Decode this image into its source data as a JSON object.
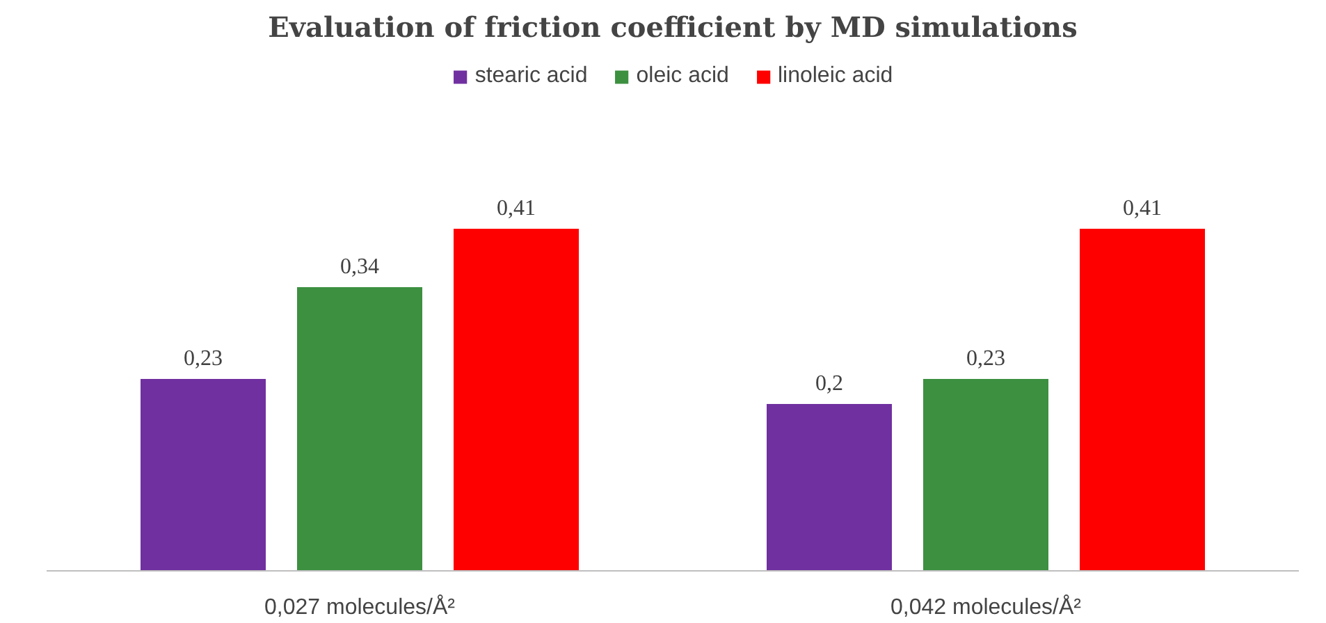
{
  "chart_data": {
    "type": "bar",
    "title": "Evaluation of friction coefficient by MD simulations",
    "categories": [
      "0,027 molecules/Å²",
      "0,042 molecules/Å²"
    ],
    "series": [
      {
        "name": "stearic acid",
        "color": "#7030a0",
        "values": [
          0.23,
          0.2
        ],
        "value_labels": [
          "0,23",
          "0,2"
        ]
      },
      {
        "name": "oleic acid",
        "color": "#3c9040",
        "values": [
          0.34,
          0.23
        ],
        "value_labels": [
          "0,34",
          "0,23"
        ]
      },
      {
        "name": "linoleic acid",
        "color": "#ff0000",
        "values": [
          0.41,
          0.41
        ],
        "value_labels": [
          "0,41",
          "0,41"
        ]
      }
    ],
    "legend": "top"
  }
}
